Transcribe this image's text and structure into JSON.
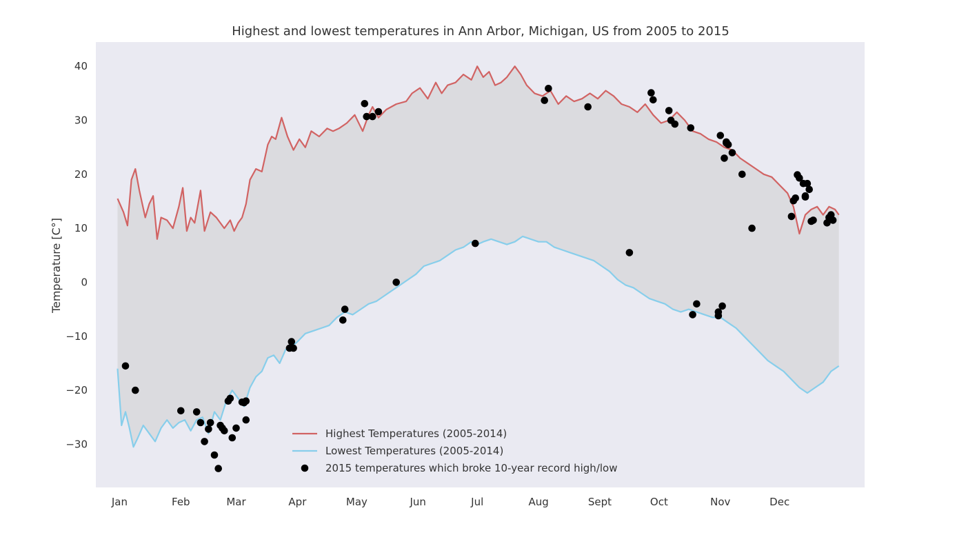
{
  "chart_data": {
    "type": "line",
    "title": "Highest and lowest temperatures in Ann Arbor, Michigan, US from 2005 to 2015",
    "xlabel": "",
    "ylabel": "Temperature [C°]",
    "xlim": [
      -12,
      377
    ],
    "ylim": [
      -38,
      44.5
    ],
    "grid": false,
    "legend_position": "lower center",
    "fill_between_color": "#dbdbdf",
    "background_color": "#eaeaf2",
    "x_ticks": [
      {
        "day": 0,
        "label": "Jan"
      },
      {
        "day": 31,
        "label": "Feb"
      },
      {
        "day": 59,
        "label": "Mar"
      },
      {
        "day": 90,
        "label": "Apr"
      },
      {
        "day": 120,
        "label": "May"
      },
      {
        "day": 151,
        "label": "Jun"
      },
      {
        "day": 181,
        "label": "Jul"
      },
      {
        "day": 212,
        "label": "Aug"
      },
      {
        "day": 243,
        "label": "Sept"
      },
      {
        "day": 273,
        "label": "Oct"
      },
      {
        "day": 304,
        "label": "Nov"
      },
      {
        "day": 334,
        "label": "Dec"
      }
    ],
    "y_ticks": [
      -30,
      -20,
      -10,
      0,
      10,
      20,
      30,
      40
    ],
    "y_tick_labels": [
      "−30",
      "−20",
      "−10",
      "0",
      "10",
      "20",
      "30",
      "40"
    ],
    "series": [
      {
        "name": "Highest Temperatures (2005-2014)",
        "color": "#d16363",
        "x": [
          -1,
          2,
          4,
          6,
          8,
          10,
          13,
          15,
          17,
          19,
          21,
          24,
          27,
          30,
          32,
          34,
          36,
          38,
          41,
          43,
          46,
          49,
          53,
          56,
          58,
          60,
          62,
          64,
          66,
          69,
          72,
          75,
          77,
          79,
          82,
          85,
          88,
          91,
          94,
          97,
          101,
          105,
          108,
          111,
          115,
          119,
          123,
          126,
          128,
          131,
          135,
          140,
          145,
          148,
          152,
          156,
          160,
          163,
          166,
          170,
          174,
          178,
          181,
          184,
          187,
          190,
          193,
          196,
          200,
          203,
          206,
          210,
          214,
          218,
          222,
          226,
          230,
          234,
          238,
          242,
          246,
          250,
          254,
          258,
          262,
          266,
          270,
          274,
          278,
          282,
          286,
          290,
          294,
          298,
          302,
          306,
          310,
          314,
          318,
          322,
          326,
          330,
          334,
          338,
          341,
          344,
          347,
          350,
          353,
          356,
          359,
          362,
          364
        ],
        "values": [
          15.5,
          13.0,
          10.5,
          19.0,
          21.0,
          17.0,
          12.0,
          14.5,
          16.0,
          8.0,
          12.0,
          11.5,
          10.0,
          14.0,
          17.5,
          9.5,
          12.0,
          11.0,
          17.0,
          9.5,
          13.0,
          12.0,
          10.0,
          11.5,
          9.5,
          11.0,
          12.0,
          14.5,
          19.0,
          21.0,
          20.5,
          25.5,
          27.0,
          26.5,
          30.5,
          27.0,
          24.5,
          26.5,
          25.0,
          28.0,
          27.0,
          28.5,
          28.0,
          28.5,
          29.5,
          31.0,
          28.0,
          31.0,
          32.5,
          30.5,
          32.0,
          33.0,
          33.5,
          35.0,
          36.0,
          34.0,
          37.0,
          35.0,
          36.5,
          37.0,
          38.5,
          37.5,
          40.0,
          38.0,
          39.0,
          36.5,
          37.0,
          38.0,
          40.0,
          38.5,
          36.5,
          35.0,
          34.5,
          35.5,
          33.0,
          34.5,
          33.5,
          34.0,
          35.0,
          34.0,
          35.5,
          34.5,
          33.0,
          32.5,
          31.5,
          33.0,
          31.0,
          29.5,
          30.0,
          31.5,
          30.0,
          28.0,
          27.5,
          26.5,
          26.0,
          25.0,
          24.5,
          23.0,
          22.0,
          21.0,
          20.0,
          19.5,
          18.0,
          16.5,
          14.0,
          9.0,
          12.5,
          13.5,
          14.0,
          12.5,
          14.0,
          13.5,
          12.5
        ]
      },
      {
        "name": "Lowest Temperatures (2005-2014)",
        "color": "#87ceeb",
        "x": [
          -1,
          1,
          3,
          5,
          7,
          9,
          12,
          15,
          18,
          21,
          24,
          27,
          30,
          33,
          36,
          39,
          42,
          45,
          48,
          51,
          54,
          57,
          60,
          63,
          66,
          69,
          72,
          75,
          78,
          81,
          84,
          87,
          90,
          94,
          98,
          102,
          106,
          110,
          114,
          118,
          122,
          126,
          130,
          134,
          138,
          142,
          146,
          150,
          154,
          158,
          162,
          166,
          170,
          174,
          178,
          181,
          184,
          188,
          192,
          196,
          200,
          204,
          208,
          212,
          216,
          220,
          224,
          228,
          232,
          236,
          240,
          244,
          248,
          252,
          256,
          260,
          264,
          268,
          272,
          276,
          280,
          284,
          288,
          292,
          296,
          300,
          304,
          308,
          312,
          316,
          320,
          324,
          328,
          332,
          336,
          340,
          344,
          348,
          352,
          356,
          360,
          364
        ],
        "values": [
          -16.0,
          -26.5,
          -24.0,
          -27.0,
          -30.5,
          -29.0,
          -26.5,
          -28.0,
          -29.5,
          -27.0,
          -25.5,
          -27.0,
          -26.0,
          -25.5,
          -27.5,
          -25.5,
          -25.0,
          -28.0,
          -24.0,
          -25.5,
          -22.0,
          -20.0,
          -21.5,
          -23.0,
          -19.5,
          -17.5,
          -16.5,
          -14.0,
          -13.5,
          -15.0,
          -12.5,
          -12.0,
          -11.0,
          -9.5,
          -9.0,
          -8.5,
          -8.0,
          -6.5,
          -5.5,
          -6.0,
          -5.0,
          -4.0,
          -3.5,
          -2.5,
          -1.5,
          -0.5,
          0.5,
          1.5,
          3.0,
          3.5,
          4.0,
          5.0,
          6.0,
          6.5,
          7.5,
          7.0,
          7.5,
          8.0,
          7.5,
          7.0,
          7.5,
          8.5,
          8.0,
          7.5,
          7.5,
          6.5,
          6.0,
          5.5,
          5.0,
          4.5,
          4.0,
          3.0,
          2.0,
          0.5,
          -0.5,
          -1.0,
          -2.0,
          -3.0,
          -3.5,
          -4.0,
          -5.0,
          -5.5,
          -5.0,
          -5.5,
          -6.0,
          -6.5,
          -6.5,
          -7.5,
          -8.5,
          -10.0,
          -11.5,
          -13.0,
          -14.5,
          -15.5,
          -16.5,
          -18.0,
          -19.5,
          -20.5,
          -19.5,
          -18.5,
          -16.5,
          -15.5
        ]
      },
      {
        "name": "2015 temperatures which broke 10-year record high/low",
        "color": "#000000",
        "x": [
          3,
          8,
          31,
          39,
          41,
          43,
          45,
          46,
          48,
          50,
          51,
          52,
          53,
          55,
          56,
          57,
          59,
          62,
          63,
          64,
          64,
          86,
          87,
          88,
          113,
          114,
          124,
          125,
          128,
          131,
          140,
          180,
          215,
          217,
          237,
          258,
          269,
          270,
          278,
          279,
          281,
          289,
          290,
          292,
          303,
          303,
          304,
          305,
          306,
          307,
          307,
          308,
          310,
          315,
          320,
          340,
          341,
          342,
          343,
          344,
          346,
          347,
          347,
          348,
          349,
          350,
          351,
          358,
          359,
          360,
          361
        ],
        "values": [
          -15.5,
          -20.0,
          -23.8,
          -24.0,
          -26.0,
          -29.5,
          -27.2,
          -26.0,
          -32.0,
          -34.5,
          -26.5,
          -27.0,
          -27.5,
          -22.0,
          -21.5,
          -28.8,
          -27.0,
          -22.2,
          -22.3,
          -25.5,
          -22.0,
          -12.2,
          -11.0,
          -12.2,
          -7.0,
          -5.0,
          33.1,
          30.7,
          30.7,
          31.6,
          0.0,
          7.2,
          33.7,
          35.9,
          32.5,
          5.5,
          35.1,
          33.8,
          31.8,
          30.0,
          29.3,
          28.6,
          -6.0,
          -4.0,
          -5.5,
          -6.2,
          27.2,
          -4.4,
          23.0,
          26.0,
          25.8,
          25.5,
          24.0,
          20.0,
          10.0,
          12.2,
          15.1,
          15.6,
          19.9,
          19.3,
          18.3,
          16.0,
          15.8,
          18.3,
          17.2,
          11.3,
          11.5,
          11.0,
          12.0,
          12.5,
          11.5
        ]
      }
    ]
  }
}
